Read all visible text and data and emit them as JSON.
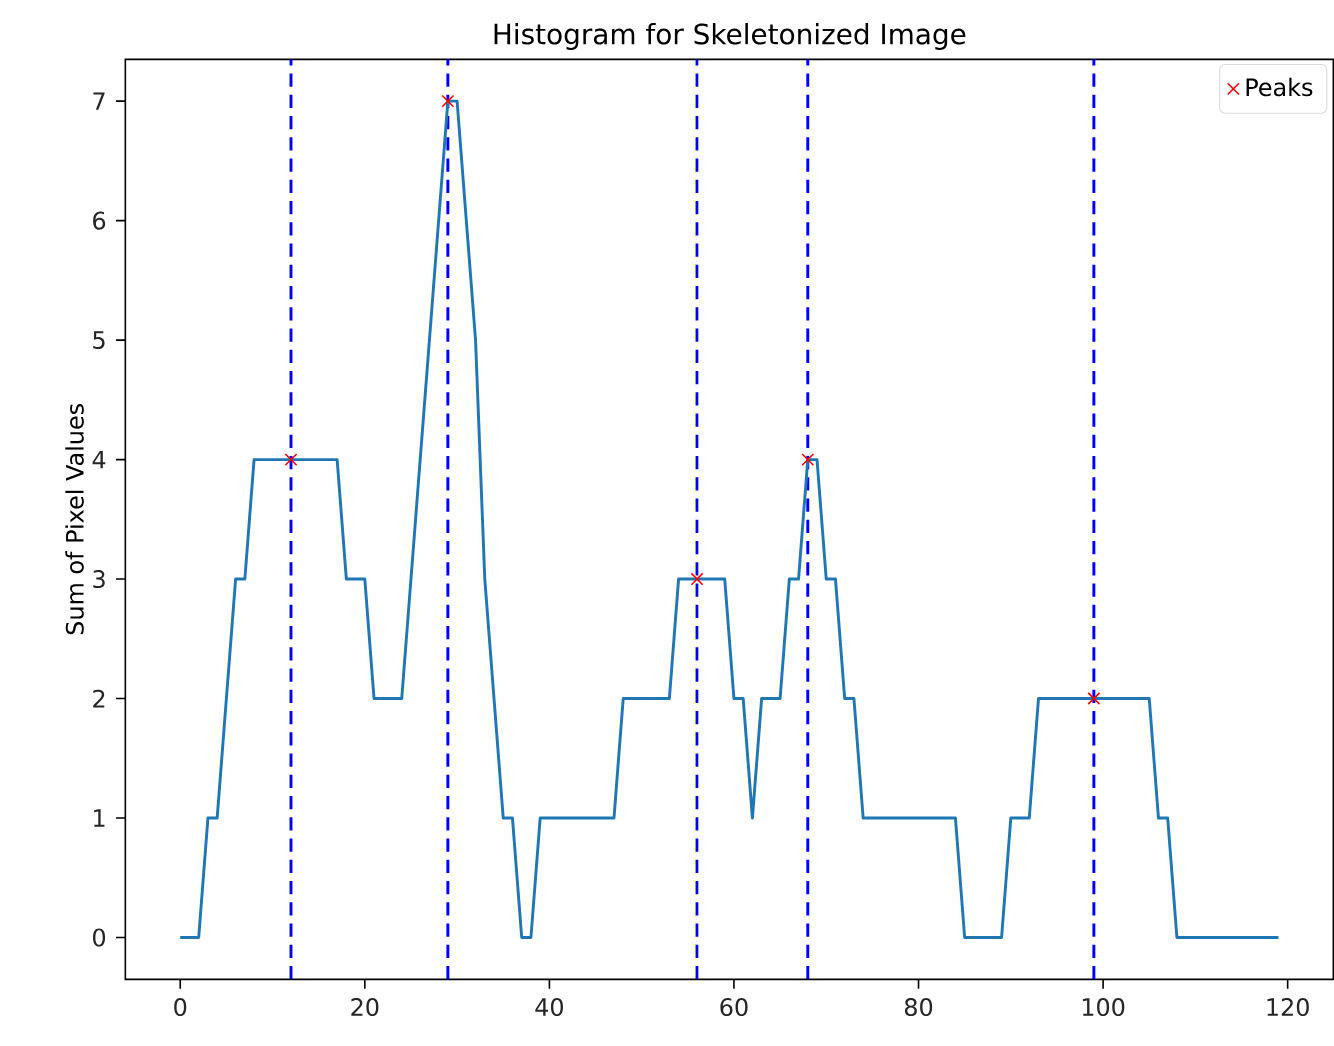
{
  "chart_data": {
    "type": "line",
    "title": "Histogram for Skeletonized Image",
    "ylabel": "Sum of Pixel Values",
    "x": [
      0,
      1,
      2,
      3,
      4,
      5,
      6,
      7,
      8,
      9,
      10,
      11,
      12,
      13,
      14,
      15,
      16,
      17,
      18,
      19,
      20,
      21,
      22,
      23,
      24,
      25,
      26,
      27,
      28,
      29,
      30,
      31,
      32,
      33,
      34,
      35,
      36,
      37,
      38,
      39,
      40,
      41,
      42,
      43,
      44,
      45,
      46,
      47,
      48,
      49,
      50,
      51,
      52,
      53,
      54,
      55,
      56,
      57,
      58,
      59,
      60,
      61,
      62,
      63,
      64,
      65,
      66,
      67,
      68,
      69,
      70,
      71,
      72,
      73,
      74,
      75,
      76,
      77,
      78,
      79,
      80,
      81,
      82,
      83,
      84,
      85,
      86,
      87,
      88,
      89,
      90,
      91,
      92,
      93,
      94,
      95,
      96,
      97,
      98,
      99,
      100,
      101,
      102,
      103,
      104,
      105,
      106,
      107,
      108,
      109,
      110,
      111,
      112,
      113,
      114,
      115,
      116,
      117,
      118,
      119
    ],
    "series": [
      {
        "color": "#1f77b4",
        "marker": "none",
        "values": [
          0,
          0,
          0,
          1,
          1,
          2,
          3,
          3,
          4,
          4,
          4,
          4,
          4,
          4,
          4,
          4,
          4,
          4,
          3,
          3,
          3,
          2,
          2,
          2,
          2,
          3,
          4,
          5,
          6,
          7,
          7,
          6,
          5,
          3,
          2,
          1,
          1,
          0,
          0,
          1,
          1,
          1,
          1,
          1,
          1,
          1,
          1,
          1,
          2,
          2,
          2,
          2,
          2,
          2,
          3,
          3,
          3,
          3,
          3,
          3,
          2,
          2,
          1,
          2,
          2,
          2,
          3,
          3,
          4,
          4,
          3,
          3,
          2,
          2,
          1,
          1,
          1,
          1,
          1,
          1,
          1,
          1,
          1,
          1,
          1,
          0,
          0,
          0,
          0,
          0,
          1,
          1,
          1,
          2,
          2,
          2,
          2,
          2,
          2,
          2,
          2,
          2,
          2,
          2,
          2,
          2,
          1,
          1,
          0,
          0,
          0,
          0,
          0,
          0,
          0,
          0,
          0,
          0,
          0,
          0
        ]
      },
      {
        "type": "scatter",
        "name": "Peaks",
        "color": "#ff0000",
        "marker": "cross",
        "x": [
          12,
          29,
          56,
          68,
          99
        ],
        "values": [
          4,
          7,
          3,
          4,
          2
        ]
      }
    ],
    "ref_lines": [
      {
        "axis": "x",
        "value": 12,
        "color": "#0000ff",
        "line_style": "dashed"
      },
      {
        "axis": "x",
        "value": 29,
        "color": "#0000ff",
        "line_style": "dashed"
      },
      {
        "axis": "x",
        "value": 56,
        "color": "#0000ff",
        "line_style": "dashed"
      },
      {
        "axis": "x",
        "value": 68,
        "color": "#0000ff",
        "line_style": "dashed"
      },
      {
        "axis": "x",
        "value": 99,
        "color": "#0000ff",
        "line_style": "dashed"
      }
    ],
    "xlim": [
      -5.95,
      124.95
    ],
    "ylim": [
      -0.35,
      7.35
    ],
    "xticks": [
      0,
      20,
      40,
      60,
      80,
      100,
      120
    ],
    "yticks": [
      0,
      1,
      2,
      3,
      4,
      5,
      6,
      7
    ],
    "grid": false,
    "legend": "top right"
  }
}
